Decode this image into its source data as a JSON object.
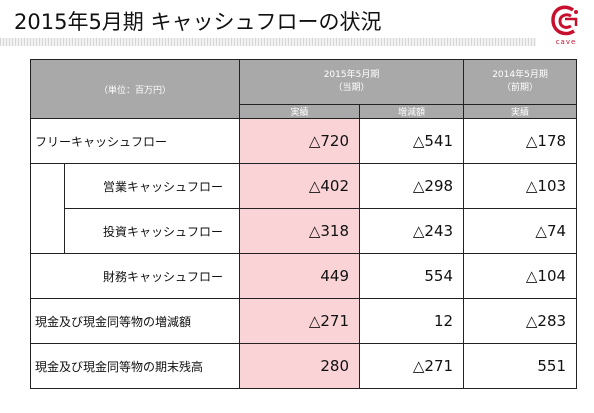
{
  "page": {
    "title": "2015年5月期 キャッシュフローの状況",
    "logo_text": "cave",
    "accent_color": "#c8102e",
    "highlight_color": "#f9d3d6",
    "header_color": "#a9a9a9"
  },
  "table": {
    "unit_label": "（単位：百万円）",
    "col_2015_title": "2015年5月期",
    "col_2015_sub": "（当期）",
    "col_2014_title": "2014年5月期",
    "col_2014_sub": "（前期）",
    "sub_actual": "実績",
    "sub_change": "増減額",
    "sub_actual_prev": "実績",
    "rows": [
      {
        "label": "フリーキャッシュフロー",
        "current": "△720",
        "change": "△541",
        "prev": "△178"
      },
      {
        "label": "営業キャッシュフロー",
        "current": "△402",
        "change": "△298",
        "prev": "△103"
      },
      {
        "label": "投資キャッシュフロー",
        "current": "△318",
        "change": "△243",
        "prev": "△74"
      },
      {
        "label": "財務キャッシュフロー",
        "current": "449",
        "change": "554",
        "prev": "△104"
      },
      {
        "label": "現金及び現金同等物の増減額",
        "current": "△271",
        "change": "12",
        "prev": "△283"
      },
      {
        "label": "現金及び現金同等物の期末残高",
        "current": "280",
        "change": "△271",
        "prev": "551"
      }
    ]
  }
}
